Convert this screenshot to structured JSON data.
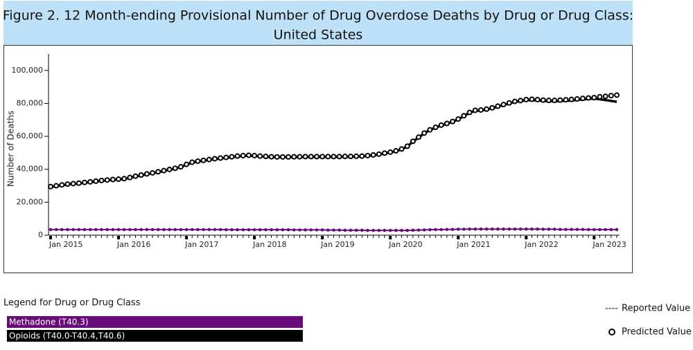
{
  "chart_data": {
    "type": "line",
    "title": [
      "Figure 2. 12 Month-ending Provisional Number of Drug Overdose Deaths by Drug or Drug Class:",
      "United States"
    ],
    "y_label": "Number of Deaths",
    "categories": [
      "Jan 2015",
      null,
      null,
      null,
      null,
      null,
      null,
      null,
      null,
      null,
      null,
      null,
      "Jan 2016",
      null,
      null,
      null,
      null,
      null,
      null,
      null,
      null,
      null,
      null,
      null,
      "Jan 2017",
      null,
      null,
      null,
      null,
      null,
      null,
      null,
      null,
      null,
      null,
      null,
      "Jan 2018",
      null,
      null,
      null,
      null,
      null,
      null,
      null,
      null,
      null,
      null,
      null,
      "Jan 2019",
      null,
      null,
      null,
      null,
      null,
      null,
      null,
      null,
      null,
      null,
      null,
      "Jan 2020",
      null,
      null,
      null,
      null,
      null,
      null,
      null,
      null,
      null,
      null,
      null,
      "Jan 2021",
      null,
      null,
      null,
      null,
      null,
      null,
      null,
      null,
      null,
      null,
      null,
      "Jan 2022",
      null,
      null,
      null,
      null,
      null,
      null,
      null,
      null,
      null,
      null,
      null,
      "Jan 2023",
      null,
      null,
      null,
      null
    ],
    "ylim": [
      0,
      110000
    ],
    "yticks": [
      0,
      {
        "value": 20000,
        "label": "20,000"
      },
      {
        "value": 40000,
        "label": "40,000"
      },
      {
        "value": 60000,
        "label": "60,000"
      },
      {
        "value": 80000,
        "label": "80,000"
      },
      {
        "value": 100000,
        "label": "100,000"
      }
    ],
    "legend_title": "Legend for Drug or Drug Class",
    "marker_legend": [
      "Reported Value",
      "Predicted Value"
    ],
    "series": [
      {
        "name": "Methadone (T40.3)",
        "color": "#680a7a",
        "values": [
          3400,
          3400,
          3400,
          3400,
          3400,
          3400,
          3400,
          3400,
          3400,
          3400,
          3400,
          3400,
          3400,
          3400,
          3400,
          3400,
          3400,
          3400,
          3400,
          3400,
          3400,
          3400,
          3400,
          3400,
          3400,
          3400,
          3400,
          3400,
          3400,
          3400,
          3400,
          3300,
          3300,
          3300,
          3300,
          3300,
          3300,
          3300,
          3300,
          3300,
          3300,
          3300,
          3300,
          3200,
          3200,
          3200,
          3200,
          3200,
          3200,
          3100,
          3100,
          3100,
          3000,
          3000,
          3000,
          3000,
          2900,
          2900,
          2900,
          2900,
          2900,
          2900,
          2900,
          2900,
          3000,
          3100,
          3200,
          3300,
          3400,
          3400,
          3500,
          3500,
          3600,
          3600,
          3700,
          3700,
          3700,
          3700,
          3700,
          3700,
          3700,
          3700,
          3700,
          3700,
          3700,
          3700,
          3700,
          3600,
          3600,
          3600,
          3500,
          3500,
          3500,
          3500,
          3500,
          3400,
          3400,
          3400,
          3400,
          3400,
          3400
        ],
        "predicted": [
          3400,
          3400,
          3400,
          3400,
          3400,
          3400,
          3400,
          3400,
          3400,
          3400,
          3400,
          3400,
          3400,
          3400,
          3400,
          3400,
          3400,
          3400,
          3400,
          3400,
          3400,
          3400,
          3400,
          3400,
          3400,
          3400,
          3400,
          3400,
          3400,
          3400,
          3400,
          3300,
          3300,
          3300,
          3300,
          3300,
          3300,
          3300,
          3300,
          3300,
          3300,
          3300,
          3300,
          3200,
          3200,
          3200,
          3200,
          3200,
          3200,
          3100,
          3100,
          3100,
          3000,
          3000,
          3000,
          3000,
          2900,
          2900,
          2900,
          2900,
          2900,
          2900,
          2900,
          2900,
          3000,
          3100,
          3200,
          3300,
          3400,
          3400,
          3500,
          3500,
          3600,
          3600,
          3700,
          3700,
          3700,
          3700,
          3700,
          3700,
          3700,
          3700,
          3700,
          3700,
          3700,
          3700,
          3700,
          3600,
          3600,
          3600,
          3500,
          3500,
          3500,
          3500,
          3500,
          3400,
          3400,
          3400,
          3400,
          3400,
          3400
        ]
      },
      {
        "name": "Opioids (T40.0-T40.4,T40.6)",
        "color": "#000000",
        "values": [
          29300,
          29800,
          30300,
          30800,
          31100,
          31400,
          31800,
          32200,
          32600,
          33000,
          33300,
          33600,
          33800,
          34100,
          34800,
          35600,
          36300,
          37000,
          37600,
          38300,
          39000,
          39700,
          40400,
          41300,
          42800,
          44100,
          44700,
          45200,
          45700,
          46200,
          46600,
          47000,
          47400,
          47800,
          48100,
          48300,
          48100,
          47800,
          47600,
          47400,
          47300,
          47300,
          47300,
          47400,
          47400,
          47500,
          47500,
          47500,
          47500,
          47500,
          47500,
          47500,
          47600,
          47600,
          47700,
          47800,
          48100,
          48500,
          49000,
          49600,
          50200,
          51000,
          52100,
          53800,
          56800,
          59300,
          61800,
          63800,
          65300,
          66600,
          67600,
          68800,
          70300,
          72300,
          74300,
          75500,
          75700,
          76200,
          77000,
          78000,
          79000,
          80000,
          80900,
          81400,
          81900,
          82000,
          81800,
          81500,
          81300,
          81300,
          81400,
          81600,
          81800,
          82100,
          82400,
          82700,
          82900,
          82500,
          82000,
          81500,
          81000
        ],
        "predicted": [
          29500,
          30000,
          30500,
          31000,
          31300,
          31600,
          32000,
          32400,
          32800,
          33200,
          33500,
          33800,
          34000,
          34300,
          35000,
          35800,
          36500,
          37200,
          37800,
          38500,
          39200,
          39900,
          40600,
          41500,
          43000,
          44300,
          44900,
          45400,
          45900,
          46400,
          46800,
          47200,
          47600,
          48000,
          48300,
          48500,
          48300,
          48000,
          47800,
          47600,
          47500,
          47500,
          47500,
          47600,
          47600,
          47700,
          47700,
          47700,
          47700,
          47700,
          47700,
          47700,
          47800,
          47800,
          47900,
          48000,
          48300,
          48700,
          49200,
          49800,
          50400,
          51200,
          52300,
          54000,
          57000,
          59500,
          62000,
          64000,
          65500,
          66800,
          67800,
          69000,
          70500,
          72500,
          74500,
          75800,
          76000,
          76500,
          77300,
          78300,
          79300,
          80300,
          81200,
          81700,
          82300,
          82500,
          82300,
          82000,
          81800,
          81800,
          82000,
          82200,
          82400,
          82700,
          83000,
          83300,
          83500,
          84000,
          84300,
          84700,
          85000
        ]
      }
    ]
  }
}
